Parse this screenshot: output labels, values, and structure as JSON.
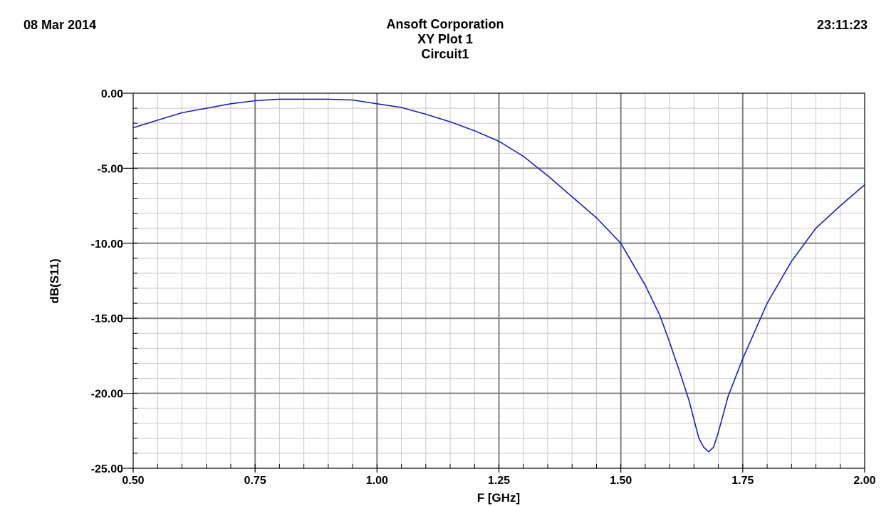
{
  "header": {
    "date": "08 Mar 2014",
    "company": "Ansoft Corporation",
    "plot_name": "XY Plot 1",
    "circuit": "Circuit1",
    "time": "23:11:23"
  },
  "colors": {
    "trace": "#1c1cc8",
    "major_grid": "#808080",
    "minor_grid": "#c8c8c8",
    "axis": "#000000"
  },
  "chart_data": {
    "type": "line",
    "title": "XY Plot 1",
    "subtitle": "Circuit1",
    "xlabel": "F [GHz]",
    "ylabel": "dB(S11)",
    "xlim": [
      0.5,
      2.0
    ],
    "ylim": [
      -25.0,
      0.0
    ],
    "x_ticks": [
      0.5,
      0.75,
      1.0,
      1.25,
      1.5,
      1.75,
      2.0
    ],
    "x_tick_labels": [
      "0.50",
      "0.75",
      "1.00",
      "1.25",
      "1.50",
      "1.75",
      "2.00"
    ],
    "y_ticks": [
      0.0,
      -5.0,
      -10.0,
      -15.0,
      -20.0,
      -25.0
    ],
    "y_tick_labels": [
      "0.00",
      "-5.00",
      "-10.00",
      "-15.00",
      "-20.00",
      "-25.00"
    ],
    "grid": true,
    "minor_x_step": 0.05,
    "minor_y_step": 1.0,
    "legend": "none",
    "series": [
      {
        "x": [
          0.5,
          0.55,
          0.6,
          0.65,
          0.7,
          0.75,
          0.8,
          0.85,
          0.9,
          0.95,
          1.0,
          1.05,
          1.1,
          1.15,
          1.2,
          1.25,
          1.3,
          1.35,
          1.4,
          1.45,
          1.5,
          1.55,
          1.58,
          1.6,
          1.62,
          1.64,
          1.66,
          1.67,
          1.68,
          1.69,
          1.7,
          1.72,
          1.75,
          1.8,
          1.85,
          1.9,
          1.95,
          2.0
        ],
        "y": [
          -2.3,
          -1.8,
          -1.3,
          -1.0,
          -0.7,
          -0.5,
          -0.4,
          -0.4,
          -0.4,
          -0.45,
          -0.7,
          -0.95,
          -1.4,
          -1.9,
          -2.5,
          -3.2,
          -4.2,
          -5.5,
          -6.9,
          -8.3,
          -10.0,
          -12.8,
          -14.8,
          -16.6,
          -18.5,
          -20.5,
          -23.0,
          -23.6,
          -23.9,
          -23.6,
          -22.6,
          -20.2,
          -17.7,
          -14.0,
          -11.2,
          -9.0,
          -7.5,
          -6.1
        ]
      }
    ]
  }
}
